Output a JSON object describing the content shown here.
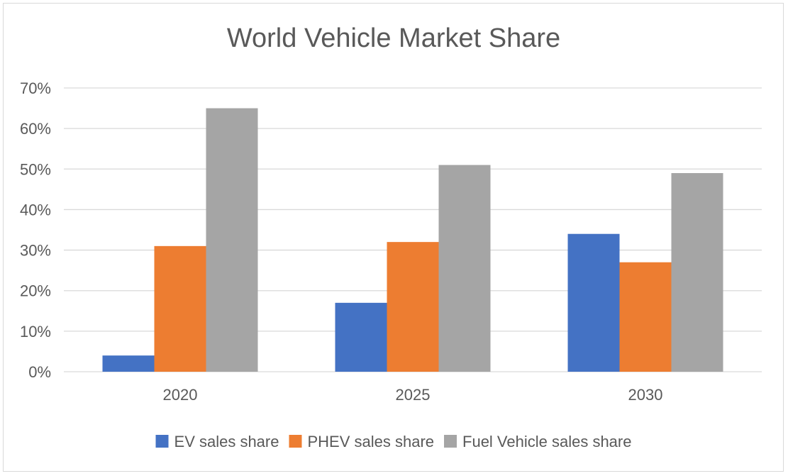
{
  "chart_data": {
    "type": "bar",
    "title": "World Vehicle Market Share",
    "xlabel": "",
    "ylabel": "",
    "categories": [
      "2020",
      "2025",
      "2030"
    ],
    "series": [
      {
        "name": "EV sales share",
        "values": [
          4,
          17,
          34
        ],
        "color": "#4472c4"
      },
      {
        "name": "PHEV sales share",
        "values": [
          31,
          32,
          27
        ],
        "color": "#ed7d31"
      },
      {
        "name": "Fuel Vehicle sales share",
        "values": [
          65,
          51,
          49
        ],
        "color": "#a5a5a5"
      }
    ],
    "ylim": [
      0,
      70
    ],
    "yticks": [
      0,
      10,
      20,
      30,
      40,
      50,
      60,
      70
    ],
    "ytick_labels": [
      "0%",
      "10%",
      "20%",
      "30%",
      "40%",
      "50%",
      "60%",
      "70%"
    ],
    "grid": true,
    "legend": "bottom"
  }
}
